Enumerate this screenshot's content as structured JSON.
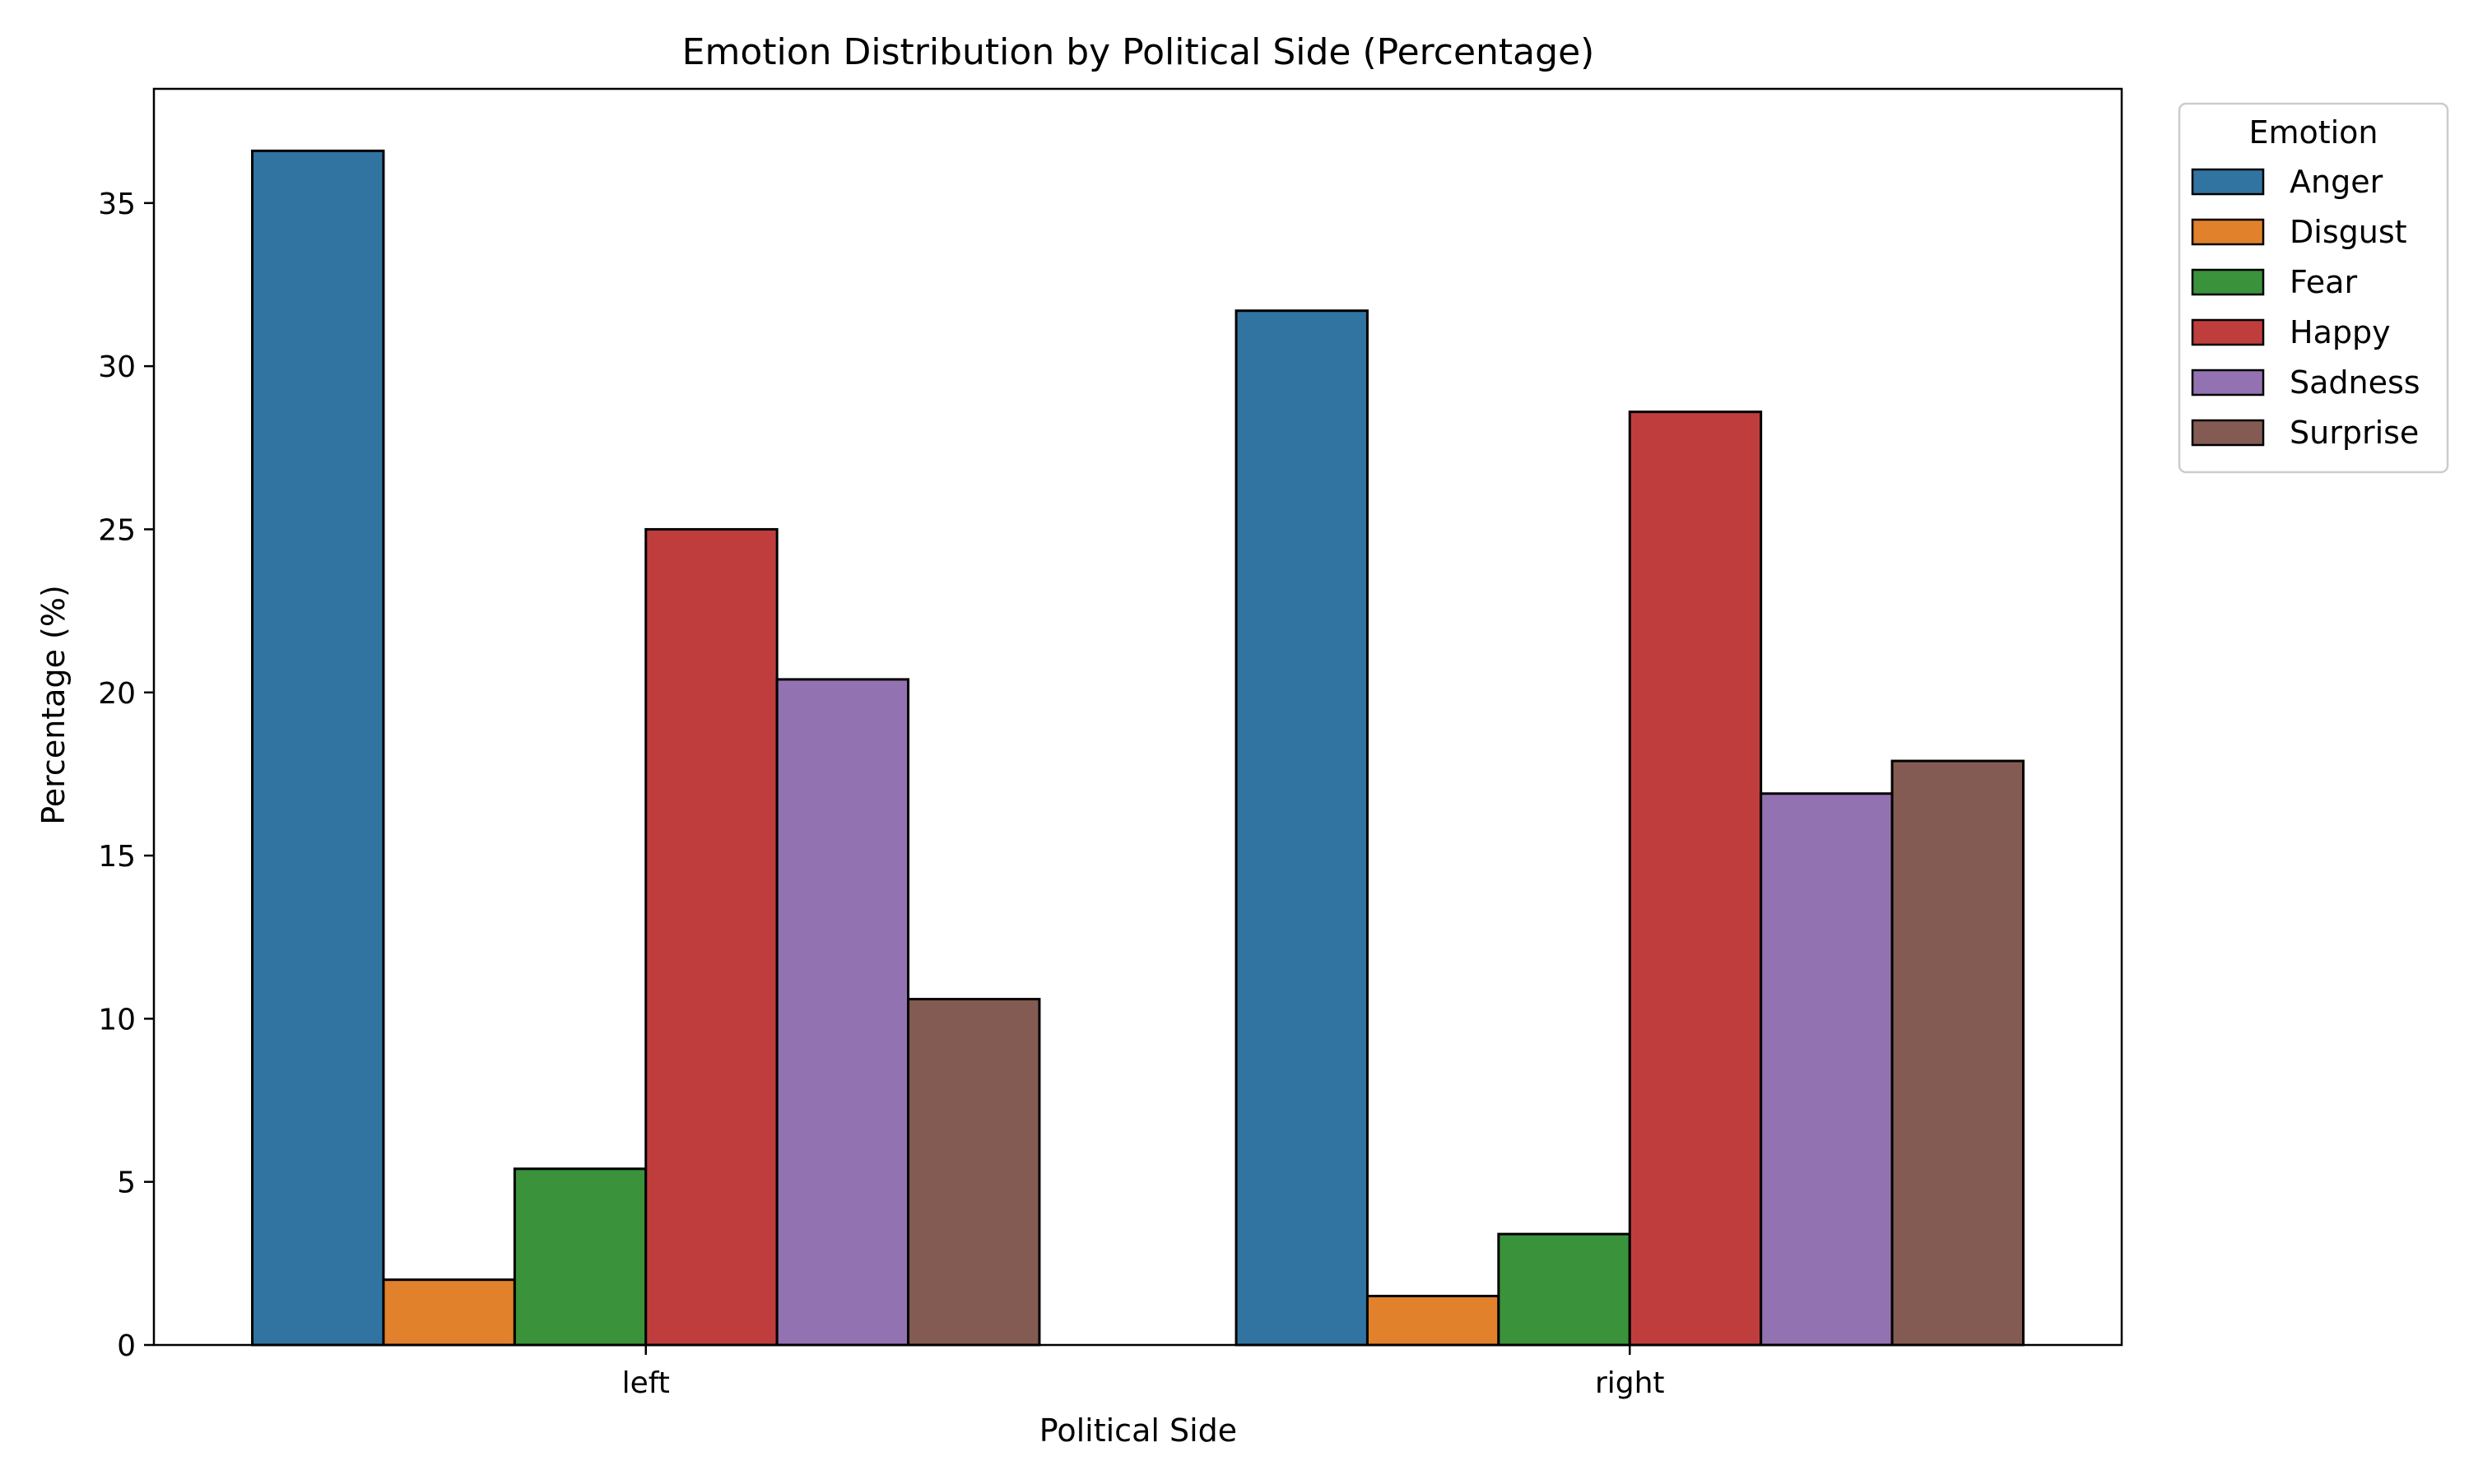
{
  "chart_data": {
    "type": "bar",
    "title": "Emotion Distribution by Political Side (Percentage)",
    "xlabel": "Political Side",
    "ylabel": "Percentage (%)",
    "categories": [
      "left",
      "right"
    ],
    "ylim": [
      0,
      38.5
    ],
    "yticks": [
      0,
      5,
      10,
      15,
      20,
      25,
      30,
      35
    ],
    "grid": false,
    "legend": {
      "title": "Emotion",
      "placement": "outside-top-right"
    },
    "series": [
      {
        "name": "Anger",
        "color": "#3274a1",
        "values": [
          36.6,
          31.7
        ]
      },
      {
        "name": "Disgust",
        "color": "#e1812c",
        "values": [
          2.0,
          1.5
        ]
      },
      {
        "name": "Fear",
        "color": "#3a923a",
        "values": [
          5.4,
          3.4
        ]
      },
      {
        "name": "Happy",
        "color": "#c03d3e",
        "values": [
          25.0,
          28.6
        ]
      },
      {
        "name": "Sadness",
        "color": "#9372b2",
        "values": [
          20.4,
          16.9
        ]
      },
      {
        "name": "Surprise",
        "color": "#845b53",
        "values": [
          10.6,
          17.9
        ]
      }
    ]
  }
}
